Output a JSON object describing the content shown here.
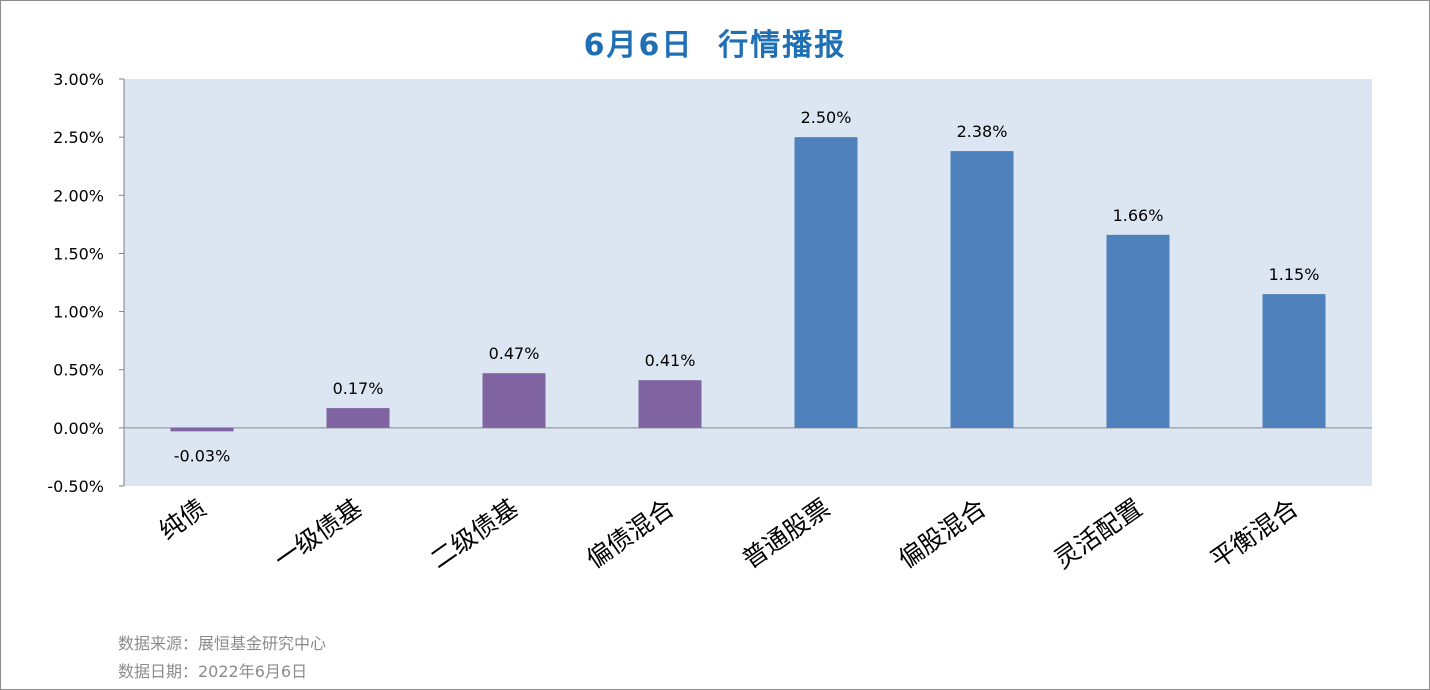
{
  "chart_data": {
    "type": "bar",
    "title": "6月6日  行情播报",
    "categories": [
      "纯债",
      "一级债基",
      "二级债基",
      "偏债混合",
      "普通股票",
      "偏股混合",
      "灵活配置",
      "平衡混合"
    ],
    "values": [
      -0.03,
      0.17,
      0.47,
      0.41,
      2.5,
      2.38,
      1.66,
      1.15
    ],
    "value_labels": [
      "-0.03%",
      "0.17%",
      "0.47%",
      "0.41%",
      "2.50%",
      "2.38%",
      "1.66%",
      "1.15%"
    ],
    "ylim": [
      -0.5,
      3.0
    ],
    "yticks": [
      -0.5,
      0.0,
      0.5,
      1.0,
      1.5,
      2.0,
      2.5,
      3.0
    ],
    "ytick_labels": [
      "-0.50%",
      "0.00%",
      "0.50%",
      "1.00%",
      "1.50%",
      "2.00%",
      "2.50%",
      "3.00%"
    ],
    "bar_colors": [
      "#8064a2",
      "#8064a2",
      "#8064a2",
      "#8064a2",
      "#4f81bd",
      "#4f81bd",
      "#4f81bd",
      "#4f81bd"
    ],
    "plot_background": "#dce6f2",
    "grid": false,
    "legend": "none"
  },
  "footer": {
    "source": "数据来源：展恒基金研究中心",
    "date": "数据日期：2022年6月6日"
  },
  "colors": {
    "title": "#1f6fb5",
    "footer_text": "#8c8c8c"
  }
}
